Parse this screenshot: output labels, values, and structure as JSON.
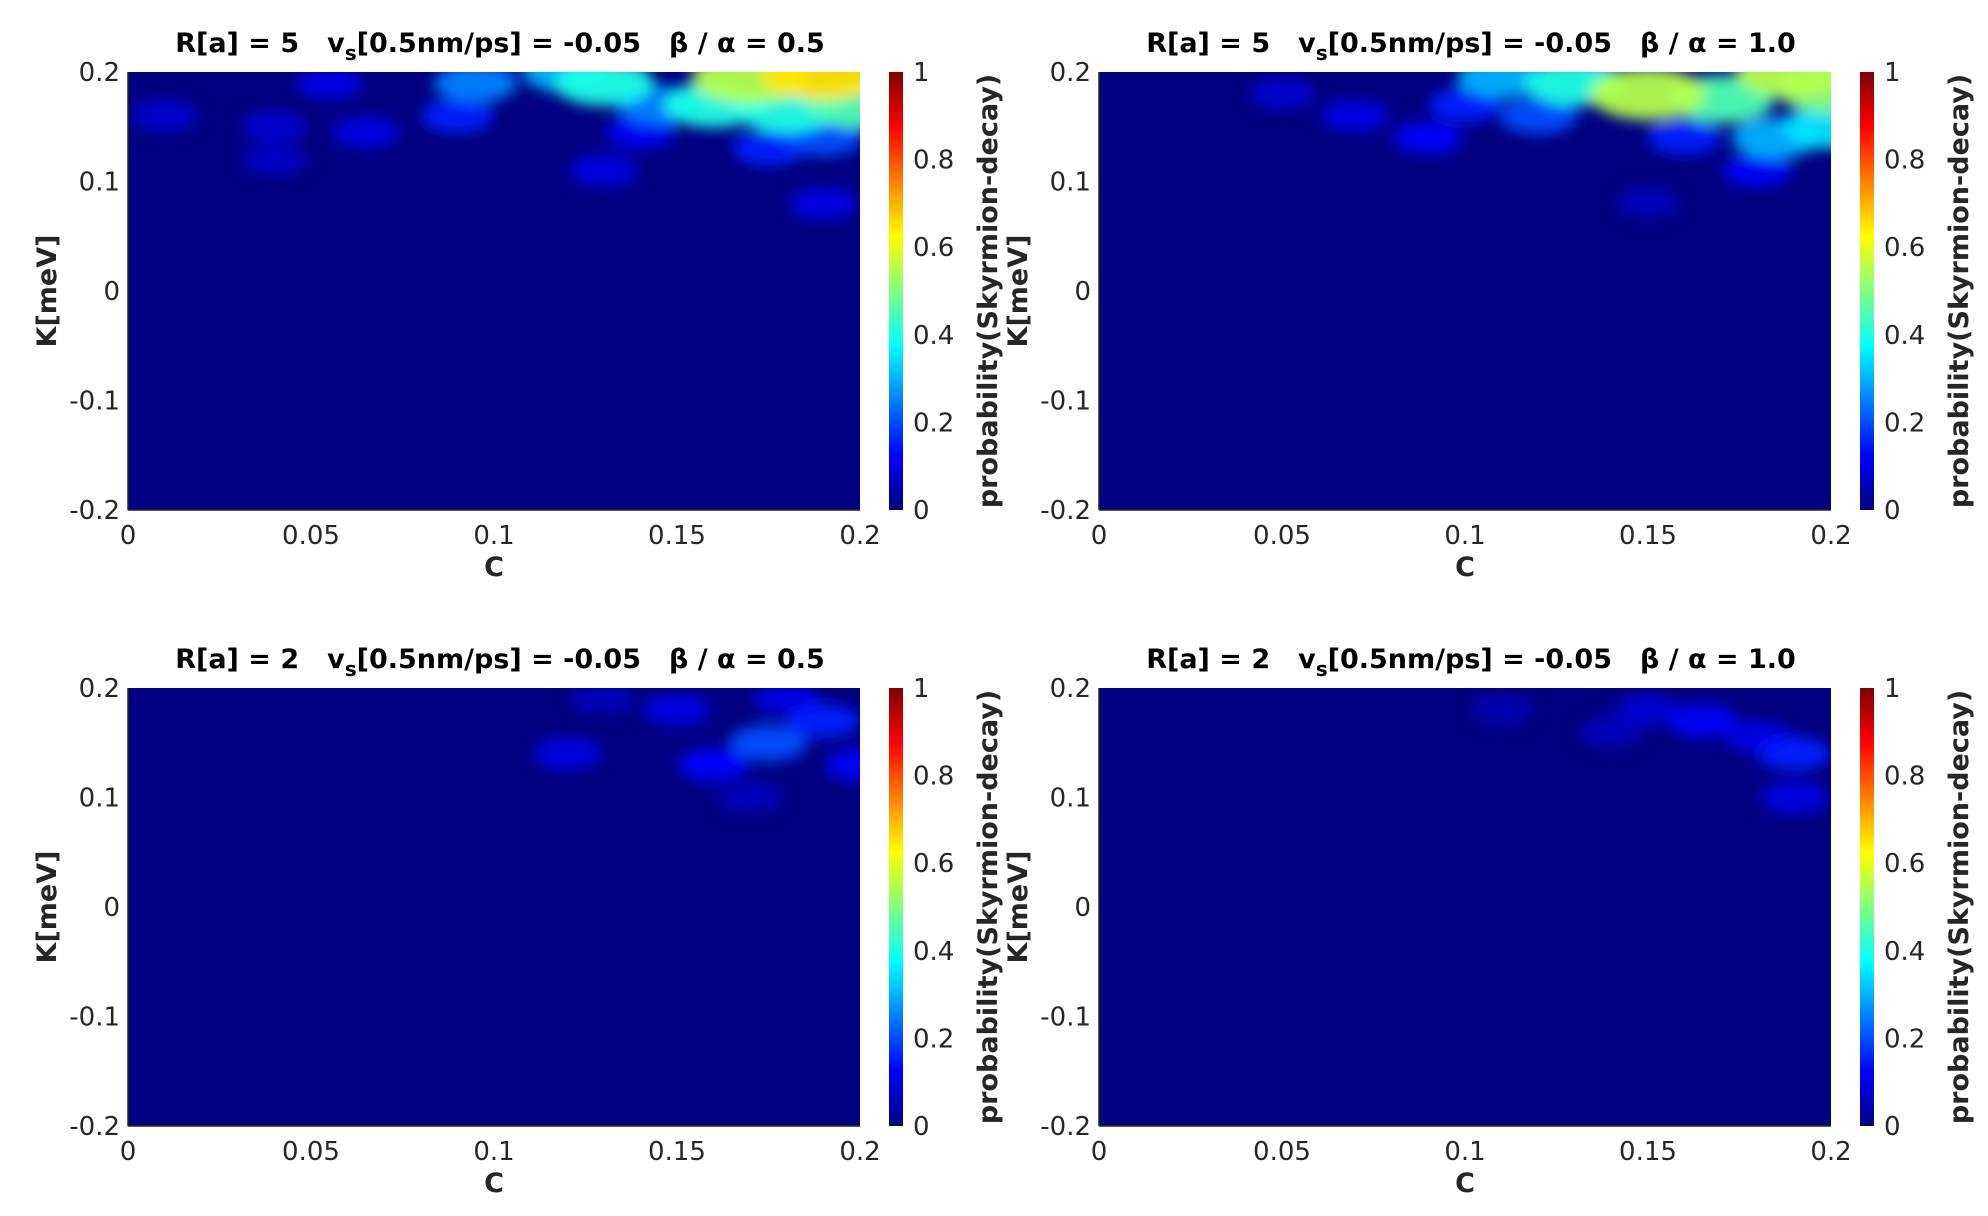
{
  "colors": {
    "background": "#000080",
    "axis": "#262626",
    "colormap": "jet"
  },
  "chart_data": [
    {
      "type": "heatmap",
      "title": {
        "r": "R[a] = 5",
        "v": "v",
        "vsub": "s",
        "vrest": "[0.5nm/ps] = -0.05",
        "beta": "β / α = 0.5"
      },
      "xlabel": "C",
      "ylabel": "K[meV]",
      "xlim": [
        0,
        0.2
      ],
      "ylim": [
        -0.2,
        0.2
      ],
      "xticks": [
        "0",
        "0.05",
        "0.1",
        "0.15",
        "0.2"
      ],
      "yticks": [
        "0.2",
        "0.1",
        "0",
        "-0.1",
        "-0.2"
      ],
      "colorbar": {
        "label": "probability(Skyrmion-decay)",
        "range": [
          0,
          1
        ],
        "ticks": [
          "1",
          "0.8",
          "0.6",
          "0.4",
          "0.2",
          "0"
        ]
      },
      "grid": false,
      "hotspots": [
        {
          "x": 0.19,
          "y": 0.2,
          "value": 0.65
        },
        {
          "x": 0.17,
          "y": 0.195,
          "value": 0.55
        },
        {
          "x": 0.2,
          "y": 0.17,
          "value": 0.45
        },
        {
          "x": 0.18,
          "y": 0.165,
          "value": 0.4
        },
        {
          "x": 0.16,
          "y": 0.17,
          "value": 0.4
        },
        {
          "x": 0.13,
          "y": 0.19,
          "value": 0.4
        },
        {
          "x": 0.12,
          "y": 0.2,
          "value": 0.3
        },
        {
          "x": 0.145,
          "y": 0.17,
          "value": 0.25
        },
        {
          "x": 0.095,
          "y": 0.19,
          "value": 0.25
        },
        {
          "x": 0.09,
          "y": 0.16,
          "value": 0.15
        },
        {
          "x": 0.19,
          "y": 0.14,
          "value": 0.2
        },
        {
          "x": 0.175,
          "y": 0.13,
          "value": 0.15
        },
        {
          "x": 0.14,
          "y": 0.145,
          "value": 0.12
        },
        {
          "x": 0.13,
          "y": 0.11,
          "value": 0.1
        },
        {
          "x": 0.065,
          "y": 0.145,
          "value": 0.1
        },
        {
          "x": 0.04,
          "y": 0.15,
          "value": 0.08
        },
        {
          "x": 0.01,
          "y": 0.16,
          "value": 0.08
        },
        {
          "x": 0.04,
          "y": 0.12,
          "value": 0.07
        },
        {
          "x": 0.19,
          "y": 0.08,
          "value": 0.1
        },
        {
          "x": 0.055,
          "y": 0.19,
          "value": 0.1
        }
      ]
    },
    {
      "type": "heatmap",
      "title": {
        "r": "R[a] = 5",
        "v": "v",
        "vsub": "s",
        "vrest": "[0.5nm/ps] = -0.05",
        "beta": "β / α = 1.0"
      },
      "xlabel": "C",
      "ylabel": "K[meV]",
      "xlim": [
        0,
        0.2
      ],
      "ylim": [
        -0.2,
        0.2
      ],
      "xticks": [
        "0",
        "0.05",
        "0.1",
        "0.15",
        "0.2"
      ],
      "yticks": [
        "0.2",
        "0.1",
        "0",
        "-0.1",
        "-0.2"
      ],
      "colorbar": {
        "label": "probability(Skyrmion-decay)",
        "range": [
          0,
          1
        ],
        "ticks": [
          "1",
          "0.8",
          "0.6",
          "0.4",
          "0.2",
          "0"
        ]
      },
      "grid": false,
      "hotspots": [
        {
          "x": 0.19,
          "y": 0.2,
          "value": 0.55
        },
        {
          "x": 0.15,
          "y": 0.18,
          "value": 0.55
        },
        {
          "x": 0.2,
          "y": 0.185,
          "value": 0.5
        },
        {
          "x": 0.17,
          "y": 0.175,
          "value": 0.45
        },
        {
          "x": 0.13,
          "y": 0.19,
          "value": 0.4
        },
        {
          "x": 0.2,
          "y": 0.15,
          "value": 0.35
        },
        {
          "x": 0.11,
          "y": 0.195,
          "value": 0.3
        },
        {
          "x": 0.185,
          "y": 0.14,
          "value": 0.3
        },
        {
          "x": 0.12,
          "y": 0.16,
          "value": 0.2
        },
        {
          "x": 0.1,
          "y": 0.17,
          "value": 0.15
        },
        {
          "x": 0.09,
          "y": 0.14,
          "value": 0.12
        },
        {
          "x": 0.16,
          "y": 0.14,
          "value": 0.15
        },
        {
          "x": 0.07,
          "y": 0.16,
          "value": 0.1
        },
        {
          "x": 0.05,
          "y": 0.18,
          "value": 0.08
        },
        {
          "x": 0.15,
          "y": 0.08,
          "value": 0.06
        },
        {
          "x": 0.18,
          "y": 0.11,
          "value": 0.12
        }
      ]
    },
    {
      "type": "heatmap",
      "title": {
        "r": "R[a] = 2",
        "v": "v",
        "vsub": "s",
        "vrest": "[0.5nm/ps] = -0.05",
        "beta": "β / α = 0.5"
      },
      "xlabel": "C",
      "ylabel": "K[meV]",
      "xlim": [
        0,
        0.2
      ],
      "ylim": [
        -0.2,
        0.2
      ],
      "xticks": [
        "0",
        "0.05",
        "0.1",
        "0.15",
        "0.2"
      ],
      "yticks": [
        "0.2",
        "0.1",
        "0",
        "-0.1",
        "-0.2"
      ],
      "colorbar": {
        "label": "probability(Skyrmion-decay)",
        "range": [
          0,
          1
        ],
        "ticks": [
          "1",
          "0.8",
          "0.6",
          "0.4",
          "0.2",
          "0"
        ]
      },
      "grid": false,
      "hotspots": [
        {
          "x": 0.175,
          "y": 0.15,
          "value": 0.2
        },
        {
          "x": 0.19,
          "y": 0.17,
          "value": 0.15
        },
        {
          "x": 0.16,
          "y": 0.13,
          "value": 0.13
        },
        {
          "x": 0.2,
          "y": 0.13,
          "value": 0.12
        },
        {
          "x": 0.15,
          "y": 0.18,
          "value": 0.1
        },
        {
          "x": 0.12,
          "y": 0.14,
          "value": 0.1
        },
        {
          "x": 0.18,
          "y": 0.19,
          "value": 0.1
        },
        {
          "x": 0.17,
          "y": 0.1,
          "value": 0.06
        },
        {
          "x": 0.13,
          "y": 0.19,
          "value": 0.06
        }
      ]
    },
    {
      "type": "heatmap",
      "title": {
        "r": "R[a] = 2",
        "v": "v",
        "vsub": "s",
        "vrest": "[0.5nm/ps] = -0.05",
        "beta": "β / α = 1.0"
      },
      "xlabel": "C",
      "ylabel": "K[meV]",
      "xlim": [
        0,
        0.2
      ],
      "ylim": [
        -0.2,
        0.2
      ],
      "xticks": [
        "0",
        "0.05",
        "0.1",
        "0.15",
        "0.2"
      ],
      "yticks": [
        "0.2",
        "0.1",
        "0",
        "-0.1",
        "-0.2"
      ],
      "colorbar": {
        "label": "probability(Skyrmion-decay)",
        "range": [
          0,
          1
        ],
        "ticks": [
          "1",
          "0.8",
          "0.6",
          "0.4",
          "0.2",
          "0"
        ]
      },
      "grid": false,
      "hotspots": [
        {
          "x": 0.19,
          "y": 0.14,
          "value": 0.15
        },
        {
          "x": 0.165,
          "y": 0.17,
          "value": 0.12
        },
        {
          "x": 0.18,
          "y": 0.155,
          "value": 0.1
        },
        {
          "x": 0.15,
          "y": 0.18,
          "value": 0.08
        },
        {
          "x": 0.19,
          "y": 0.1,
          "value": 0.1
        },
        {
          "x": 0.14,
          "y": 0.16,
          "value": 0.06
        },
        {
          "x": 0.11,
          "y": 0.18,
          "value": 0.05
        }
      ]
    }
  ]
}
